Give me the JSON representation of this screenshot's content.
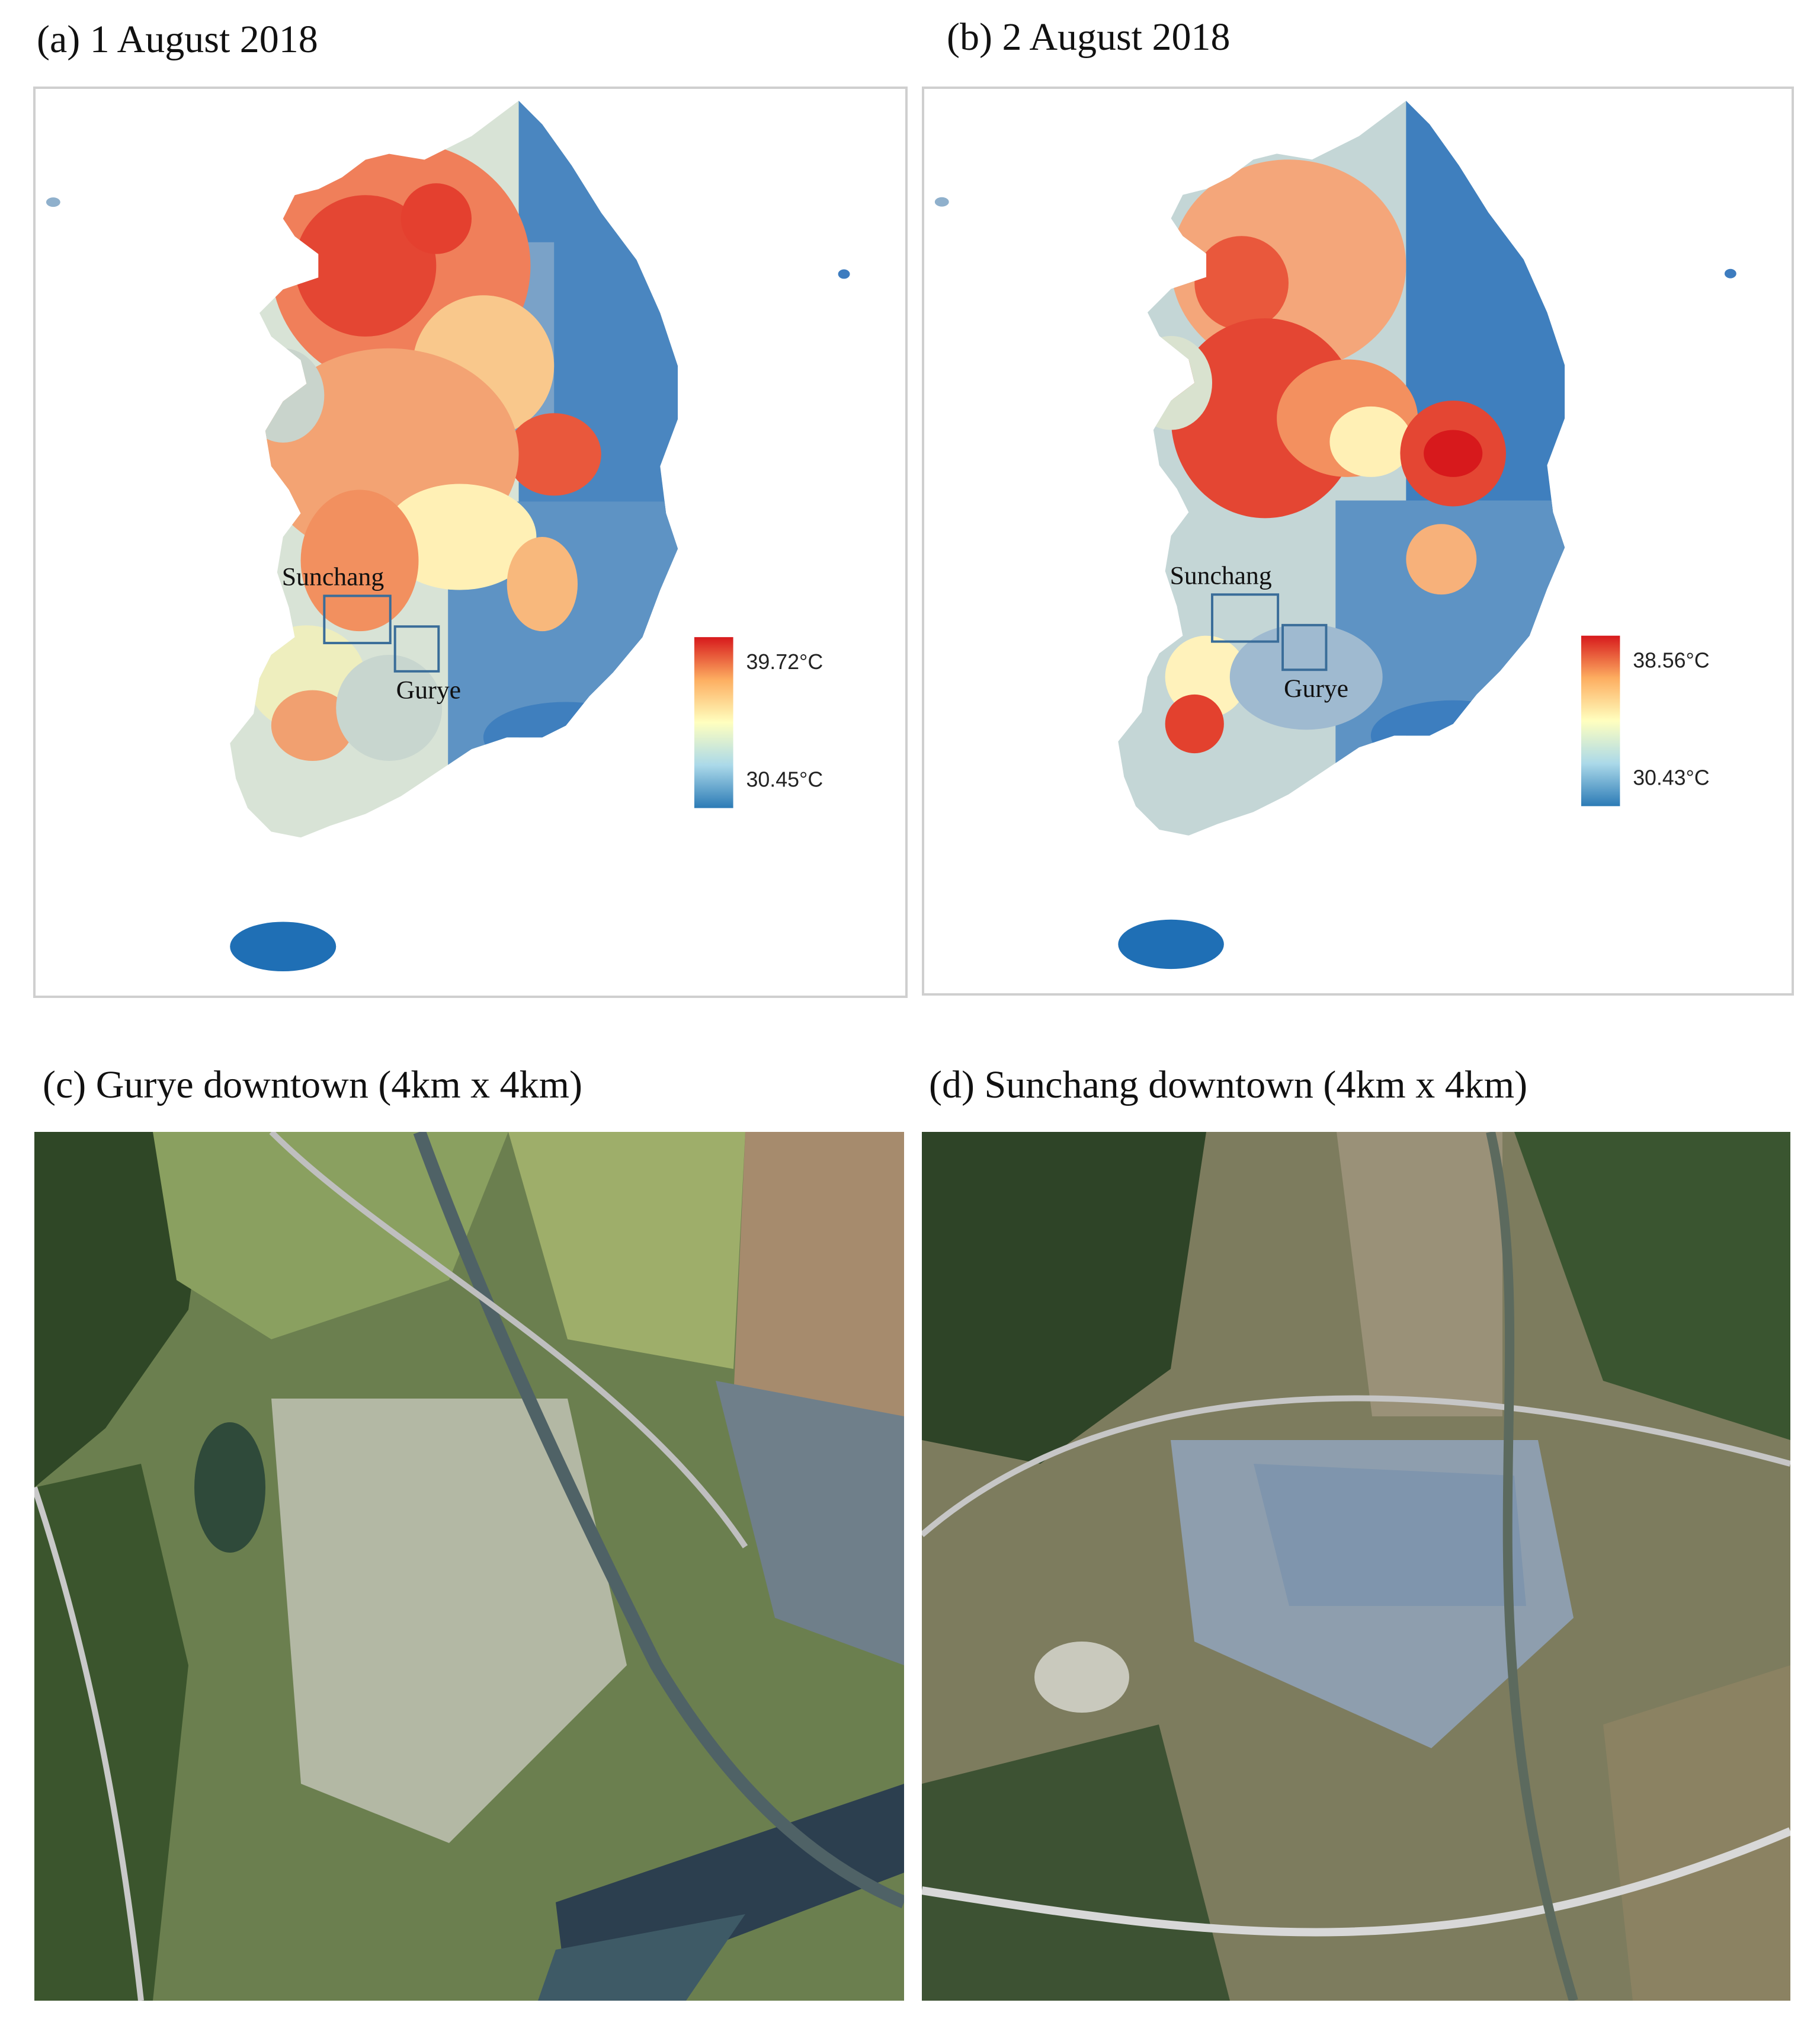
{
  "panels": {
    "a": {
      "caption": "(a) 1 August 2018",
      "label_sunchang": "Sunchang",
      "label_gurye": "Gurye",
      "scale_max": "39.72°C",
      "scale_min": "30.45°C"
    },
    "b": {
      "caption": "(b) 2 August 2018",
      "label_sunchang": "Sunchang",
      "label_gurye": "Gurye",
      "scale_max": "38.56°C",
      "scale_min": "30.43°C"
    },
    "c": {
      "caption": "(c) Gurye downtown (4km x 4km)"
    },
    "d": {
      "caption": "(d) Sunchang downtown (4km x 4km)"
    }
  },
  "colors": {
    "hot": "#d7191c",
    "warm": "#fdae61",
    "mid": "#ffffbf",
    "cool": "#abd9e9",
    "cold": "#2c7bb6"
  }
}
